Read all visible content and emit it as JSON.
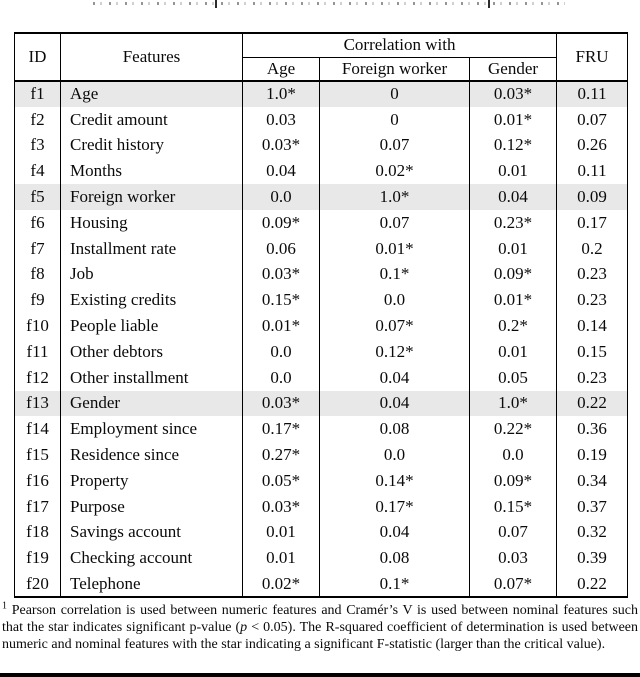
{
  "colors": {
    "row_shade": "#e8e8e8",
    "rule": "#000000",
    "background": "#ffffff"
  },
  "table": {
    "header": {
      "id": "ID",
      "features": "Features",
      "correlation_with": "Correlation with",
      "age": "Age",
      "foreign_worker": "Foreign worker",
      "gender": "Gender",
      "fru": "FRU"
    },
    "rows": [
      {
        "id": "f1",
        "feature": "Age",
        "age": "1.0*",
        "foreign_worker": "0",
        "gender": "0.03*",
        "fru": "0.11",
        "shaded": true
      },
      {
        "id": "f2",
        "feature": "Credit amount",
        "age": "0.03",
        "foreign_worker": "0",
        "gender": "0.01*",
        "fru": "0.07",
        "shaded": false
      },
      {
        "id": "f3",
        "feature": "Credit history",
        "age": "0.03*",
        "foreign_worker": "0.07",
        "gender": "0.12*",
        "fru": "0.26",
        "shaded": false
      },
      {
        "id": "f4",
        "feature": "Months",
        "age": "0.04",
        "foreign_worker": "0.02*",
        "gender": "0.01",
        "fru": "0.11",
        "shaded": false
      },
      {
        "id": "f5",
        "feature": "Foreign worker",
        "age": "0.0",
        "foreign_worker": "1.0*",
        "gender": "0.04",
        "fru": "0.09",
        "shaded": true
      },
      {
        "id": "f6",
        "feature": "Housing",
        "age": "0.09*",
        "foreign_worker": "0.07",
        "gender": "0.23*",
        "fru": "0.17",
        "shaded": false
      },
      {
        "id": "f7",
        "feature": "Installment rate",
        "age": "0.06",
        "foreign_worker": "0.01*",
        "gender": "0.01",
        "fru": "0.2",
        "shaded": false
      },
      {
        "id": "f8",
        "feature": "Job",
        "age": "0.03*",
        "foreign_worker": "0.1*",
        "gender": "0.09*",
        "fru": "0.23",
        "shaded": false
      },
      {
        "id": "f9",
        "feature": "Existing credits",
        "age": "0.15*",
        "foreign_worker": "0.0",
        "gender": "0.01*",
        "fru": "0.23",
        "shaded": false
      },
      {
        "id": "f10",
        "feature": "People liable",
        "age": "0.01*",
        "foreign_worker": "0.07*",
        "gender": "0.2*",
        "fru": "0.14",
        "shaded": false
      },
      {
        "id": "f11",
        "feature": "Other debtors",
        "age": "0.0",
        "foreign_worker": "0.12*",
        "gender": "0.01",
        "fru": "0.15",
        "shaded": false
      },
      {
        "id": "f12",
        "feature": "Other installment",
        "age": "0.0",
        "foreign_worker": "0.04",
        "gender": "0.05",
        "fru": "0.23",
        "shaded": false
      },
      {
        "id": "f13",
        "feature": "Gender",
        "age": "0.03*",
        "foreign_worker": "0.04",
        "gender": "1.0*",
        "fru": "0.22",
        "shaded": true
      },
      {
        "id": "f14",
        "feature": "Employment since",
        "age": "0.17*",
        "foreign_worker": "0.08",
        "gender": "0.22*",
        "fru": "0.36",
        "shaded": false
      },
      {
        "id": "f15",
        "feature": "Residence since",
        "age": "0.27*",
        "foreign_worker": "0.0",
        "gender": "0.0",
        "fru": "0.19",
        "shaded": false
      },
      {
        "id": "f16",
        "feature": "Property",
        "age": "0.05*",
        "foreign_worker": "0.14*",
        "gender": "0.09*",
        "fru": "0.34",
        "shaded": false
      },
      {
        "id": "f17",
        "feature": "Purpose",
        "age": "0.03*",
        "foreign_worker": "0.17*",
        "gender": "0.15*",
        "fru": "0.37",
        "shaded": false
      },
      {
        "id": "f18",
        "feature": "Savings account",
        "age": "0.01",
        "foreign_worker": "0.04",
        "gender": "0.07",
        "fru": "0.32",
        "shaded": false
      },
      {
        "id": "f19",
        "feature": "Checking account",
        "age": "0.01",
        "foreign_worker": "0.08",
        "gender": "0.03",
        "fru": "0.39",
        "shaded": false
      },
      {
        "id": "f20",
        "feature": "Telephone",
        "age": "0.02*",
        "foreign_worker": "0.1*",
        "gender": "0.07*",
        "fru": "0.22",
        "shaded": false
      }
    ]
  },
  "footnote": {
    "marker": "1",
    "segments": [
      {
        "text": " Pearson correlation is used between numeric features and Cramér’s V is used between nominal features such that the star indicates significant p-value (",
        "style": "normal"
      },
      {
        "text": "p",
        "style": "italic"
      },
      {
        "text": " < 0.05). The R-squared coefficient of determination is used between numeric and nominal features with the star indicating a significant F-statistic (larger than the critical value).",
        "style": "normal"
      }
    ]
  }
}
